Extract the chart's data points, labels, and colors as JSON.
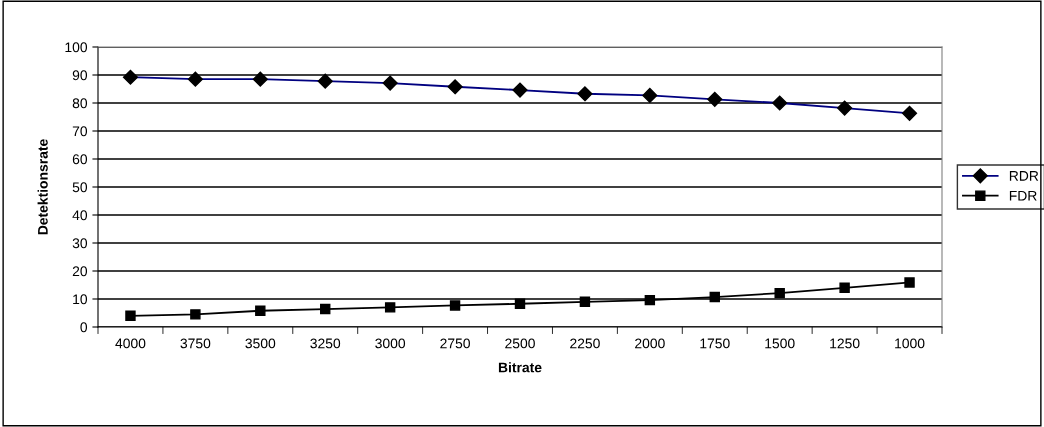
{
  "chart_data": {
    "type": "line",
    "xlabel": "Bitrate",
    "ylabel": "Detektionsrate",
    "categories": [
      "4000",
      "3750",
      "3500",
      "3250",
      "3000",
      "2750",
      "2500",
      "2250",
      "2000",
      "1750",
      "1500",
      "1250",
      "1000"
    ],
    "series": [
      {
        "name": "RDR",
        "color": "#000080",
        "marker": "diamond",
        "values": [
          89.2,
          88.5,
          88.5,
          87.8,
          87.1,
          85.8,
          84.6,
          83.3,
          82.7,
          81.3,
          80,
          78.2,
          76.3
        ]
      },
      {
        "name": "FDR",
        "color": "#000000",
        "marker": "square",
        "values": [
          4,
          4.5,
          5.8,
          6.4,
          7,
          7.7,
          8.3,
          9,
          9.6,
          10.7,
          12.1,
          14,
          15.9
        ]
      }
    ],
    "ylim": [
      0,
      100
    ],
    "yticks": [
      0,
      10,
      20,
      30,
      40,
      50,
      60,
      70,
      80,
      90,
      100
    ],
    "grid": "y",
    "legend": "right",
    "line_style": "solid"
  }
}
